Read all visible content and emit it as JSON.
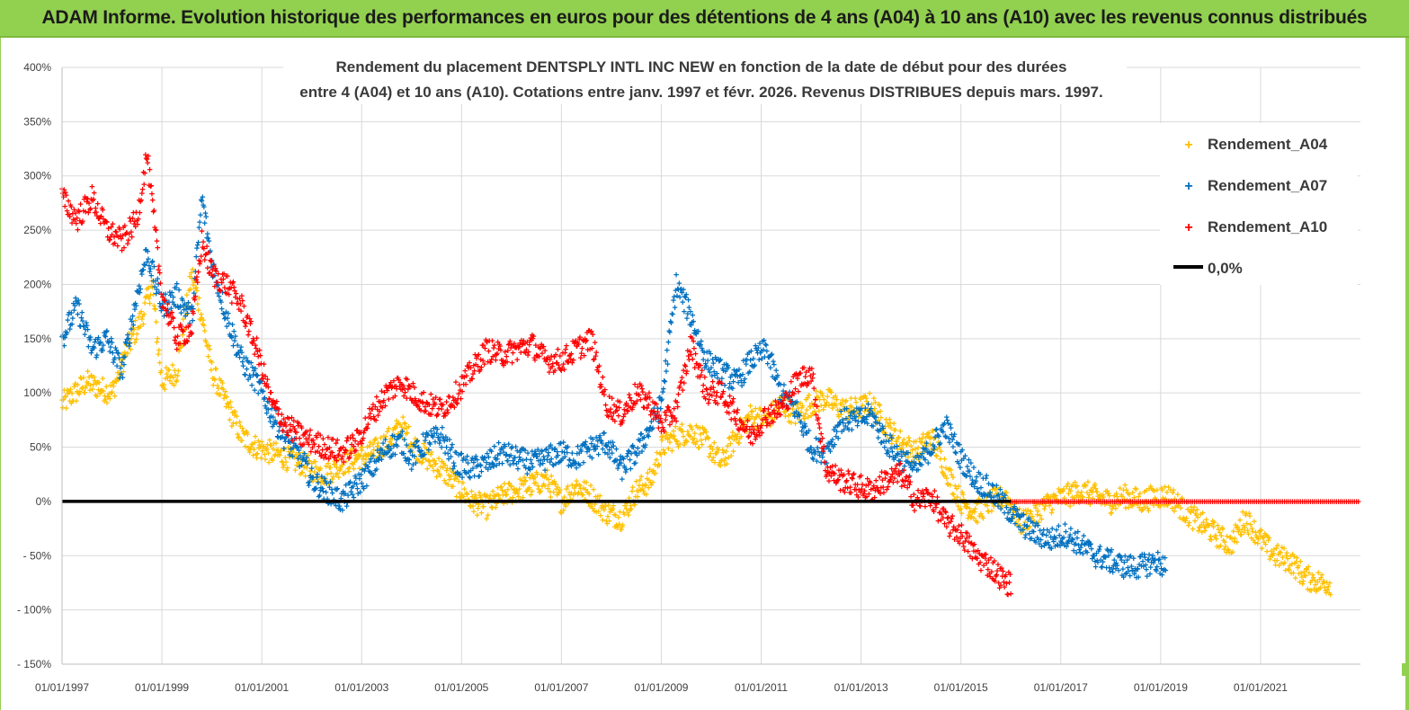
{
  "banner": {
    "title": "ADAM Informe. Evolution historique des performances en euros pour des détentions de 4 ans (A04) à 10 ans (A10) avec les revenus connus distribués"
  },
  "colors": {
    "banner_bg": "#92d050",
    "A04": "#ffc000",
    "A07": "#0070c0",
    "A10": "#ff0000",
    "zero_line": "#000000",
    "grid": "#d9d9d9"
  },
  "chart_data": {
    "type": "scatter",
    "title_lines": [
      "Rendement du placement DENTSPLY INTL INC NEW en fonction de la date de début pour des durées",
      "entre 4 (A04) et 10 ans (A10).  Cotations entre janv. 1997 et févr. 2026. Revenus DISTRIBUES depuis mars. 1997."
    ],
    "xlabel": "",
    "ylabel": "",
    "xlim": [
      1997.0,
      2023.0
    ],
    "ylim": [
      -150,
      400
    ],
    "y_ticks": [
      400,
      350,
      300,
      250,
      200,
      150,
      100,
      50,
      0,
      -50,
      -100,
      -150
    ],
    "y_tick_labels": [
      "400%",
      "350%",
      "300%",
      "250%",
      "200%",
      "150%",
      "100%",
      "50%",
      "0%",
      "- 50%",
      "- 100%",
      "- 150%"
    ],
    "x_ticks": [
      1997,
      1999,
      2001,
      2003,
      2005,
      2007,
      2009,
      2011,
      2013,
      2015,
      2017,
      2019,
      2021
    ],
    "x_tick_labels": [
      "01/01/1997",
      "01/01/1999",
      "01/01/2001",
      "01/01/2003",
      "01/01/2005",
      "01/01/2007",
      "01/01/2009",
      "01/01/2011",
      "01/01/2013",
      "01/01/2015",
      "01/01/2017",
      "01/01/2019",
      "01/01/2021"
    ],
    "legend": {
      "placement": "top-right",
      "entries": [
        "Rendement_A04",
        "Rendement_A07",
        "Rendement_A10",
        "0,0%"
      ]
    },
    "series": [
      {
        "name": "Rendement_A04",
        "x": [
          1997.0,
          1997.5,
          1998.0,
          1998.3,
          1998.6,
          1998.8,
          1999.0,
          1999.3,
          1999.6,
          1999.8,
          2000.0,
          2000.3,
          2000.6,
          2000.9,
          2001.2,
          2001.5,
          2001.8,
          2002.0,
          2002.3,
          2002.6,
          2002.9,
          2003.2,
          2003.5,
          2003.8,
          2004.0,
          2004.3,
          2004.6,
          2004.9,
          2005.2,
          2005.5,
          2005.8,
          2006.1,
          2006.4,
          2006.7,
          2007.0,
          2007.3,
          2007.6,
          2007.9,
          2008.2,
          2008.5,
          2008.8,
          2009.0,
          2009.3,
          2009.6,
          2009.9,
          2010.2,
          2010.5,
          2010.8,
          2011.1,
          2011.4,
          2011.7,
          2012.0,
          2012.3,
          2012.6,
          2012.9,
          2013.2,
          2013.5,
          2013.8,
          2014.1,
          2014.4,
          2014.7,
          2015.0,
          2015.3,
          2015.6,
          2015.9,
          2016.2,
          2016.5,
          2016.8,
          2017.1,
          2017.4,
          2017.7,
          2018.0,
          2018.3,
          2018.6,
          2018.9,
          2019.2,
          2019.5,
          2019.8,
          2020.1,
          2020.4,
          2020.7,
          2021.0,
          2021.3,
          2021.6,
          2021.9,
          2022.2,
          2022.4
        ],
        "values": [
          90,
          110,
          100,
          140,
          170,
          200,
          110,
          120,
          210,
          170,
          120,
          90,
          60,
          50,
          45,
          40,
          35,
          30,
          25,
          35,
          40,
          45,
          55,
          70,
          55,
          40,
          30,
          15,
          0,
          -5,
          5,
          10,
          15,
          20,
          0,
          15,
          5,
          -10,
          -15,
          10,
          20,
          50,
          60,
          65,
          55,
          35,
          60,
          80,
          75,
          90,
          80,
          90,
          95,
          85,
          85,
          90,
          70,
          55,
          45,
          60,
          30,
          0,
          -10,
          0,
          5,
          -20,
          -10,
          0,
          5,
          10,
          5,
          0,
          5,
          0,
          5,
          5,
          -10,
          -20,
          -30,
          -40,
          -15,
          -35,
          -50,
          -55,
          -70,
          -75,
          -75
        ]
      },
      {
        "name": "Rendement_A07",
        "x": [
          1997.0,
          1997.3,
          1997.6,
          1997.9,
          1998.2,
          1998.5,
          1998.7,
          1999.0,
          1999.3,
          1999.6,
          1999.8,
          2000.0,
          2000.3,
          2000.6,
          2000.9,
          2001.2,
          2001.5,
          2001.8,
          2002.0,
          2002.3,
          2002.6,
          2002.9,
          2003.2,
          2003.5,
          2003.8,
          2004.0,
          2004.3,
          2004.6,
          2004.9,
          2005.2,
          2005.5,
          2005.8,
          2006.1,
          2006.4,
          2006.7,
          2007.0,
          2007.3,
          2007.6,
          2007.9,
          2008.2,
          2008.5,
          2008.8,
          2009.0,
          2009.3,
          2009.6,
          2009.9,
          2010.2,
          2010.5,
          2010.8,
          2011.1,
          2011.4,
          2011.7,
          2012.0,
          2012.3,
          2012.6,
          2012.9,
          2013.2,
          2013.5,
          2013.8,
          2014.1,
          2014.4,
          2014.7,
          2015.0,
          2015.3,
          2015.6,
          2015.9,
          2016.2,
          2016.5,
          2016.8,
          2017.1,
          2017.4,
          2017.7,
          2018.0,
          2018.3,
          2018.6,
          2018.9,
          2019.1
        ],
        "values": [
          150,
          180,
          140,
          150,
          120,
          190,
          230,
          180,
          190,
          170,
          280,
          220,
          170,
          130,
          110,
          80,
          55,
          40,
          20,
          10,
          0,
          15,
          30,
          50,
          55,
          40,
          55,
          60,
          35,
          30,
          35,
          45,
          40,
          35,
          40,
          45,
          40,
          50,
          55,
          30,
          45,
          70,
          90,
          200,
          170,
          130,
          120,
          110,
          130,
          140,
          100,
          85,
          50,
          45,
          75,
          75,
          80,
          55,
          40,
          30,
          50,
          70,
          40,
          20,
          10,
          -5,
          -20,
          -30,
          -35,
          -30,
          -40,
          -50,
          -55,
          -60,
          -60,
          -55,
          -60
        ]
      },
      {
        "name": "Rendement_A10",
        "x": [
          1997.0,
          1997.3,
          1997.6,
          1997.9,
          1998.2,
          1998.5,
          1998.7,
          1999.0,
          1999.3,
          1999.6,
          1999.8,
          2000.0,
          2000.3,
          2000.6,
          2000.9,
          2001.2,
          2001.5,
          2001.8,
          2002.0,
          2002.3,
          2002.6,
          2002.9,
          2003.2,
          2003.5,
          2003.8,
          2004.0,
          2004.3,
          2004.6,
          2004.9,
          2005.2,
          2005.5,
          2005.8,
          2006.1,
          2006.4,
          2006.7,
          2007.0,
          2007.3,
          2007.6,
          2007.9,
          2008.2,
          2008.5,
          2008.8,
          2009.0,
          2009.3,
          2009.6,
          2009.9,
          2010.2,
          2010.5,
          2010.8,
          2011.1,
          2011.4,
          2011.7,
          2012.0,
          2012.3,
          2012.6,
          2012.9,
          2013.2,
          2013.5,
          2013.8,
          2014.1,
          2014.4,
          2014.7,
          2015.0,
          2015.3,
          2015.6,
          2015.9,
          2016.0
        ],
        "values": [
          280,
          260,
          280,
          250,
          240,
          260,
          320,
          190,
          150,
          160,
          240,
          210,
          200,
          180,
          140,
          90,
          70,
          60,
          55,
          50,
          45,
          55,
          80,
          100,
          110,
          100,
          90,
          85,
          100,
          120,
          140,
          135,
          140,
          145,
          130,
          130,
          140,
          150,
          90,
          80,
          100,
          90,
          70,
          85,
          145,
          100,
          100,
          80,
          60,
          80,
          85,
          110,
          120,
          30,
          20,
          15,
          10,
          20,
          25,
          0,
          5,
          -20,
          -30,
          -50,
          -60,
          -75,
          -75
        ]
      },
      {
        "name": "0,0%",
        "x": [
          1997.0,
          2023.0
        ],
        "values": [
          0,
          0
        ]
      }
    ],
    "overlay_note": "Rendement_A10 continues as a dense red marker band at 0% from 01/01/2016 to the right edge"
  }
}
